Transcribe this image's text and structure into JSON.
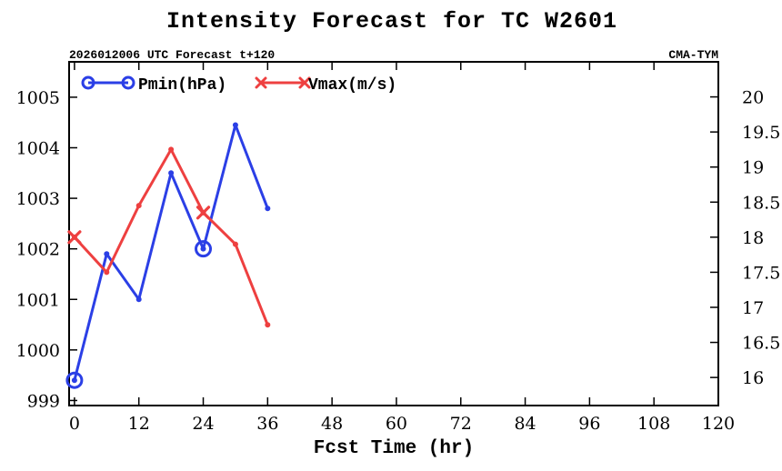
{
  "chart_data": {
    "type": "line",
    "title": "Intensity Forecast for TC W2601",
    "subtitle_left": "2026012006 UTC Forecast t+120",
    "subtitle_right": "CMA-TYM",
    "xlabel": "Fcst Time (hr)",
    "xlim": [
      -1,
      120
    ],
    "xticks": [
      0,
      12,
      24,
      36,
      48,
      60,
      72,
      84,
      96,
      108,
      120
    ],
    "xtick_labels": [
      "0",
      "12",
      "24",
      "36",
      "48",
      "60",
      "72",
      "84",
      "96",
      "108",
      "120"
    ],
    "ylim_left": [
      998.9,
      1005.7
    ],
    "yticks_left": [
      999,
      1000,
      1001,
      1002,
      1003,
      1004,
      1005
    ],
    "ytick_labels_left": [
      "999",
      "1000",
      "1001",
      "1002",
      "1003",
      "1004",
      "1005"
    ],
    "ylim_right": [
      15.6,
      20.5
    ],
    "yticks_right": [
      16,
      16.5,
      17,
      17.5,
      18,
      18.5,
      19,
      19.5,
      20
    ],
    "ytick_labels_right": [
      "16",
      "16.5",
      "17",
      "17.5",
      "18",
      "18.5",
      "19",
      "19.5",
      "20"
    ],
    "legend_position": "top-left",
    "series": [
      {
        "name": "Pmin(hPa)",
        "axis": "left",
        "color": "#2b3fe6",
        "marker": "circle",
        "x": [
          0,
          6,
          12,
          18,
          24,
          30,
          36
        ],
        "values": [
          999.4,
          1001.9,
          1001.0,
          1003.5,
          1002.0,
          1004.45,
          1002.8
        ],
        "big_marker_x": [
          0,
          24
        ]
      },
      {
        "name": "Vmax(m/s)",
        "axis": "right",
        "color": "#ee4040",
        "marker": "x",
        "x": [
          0,
          6,
          12,
          18,
          24,
          30,
          36
        ],
        "values": [
          18.0,
          17.5,
          18.45,
          19.25,
          18.35,
          17.9,
          16.75
        ],
        "big_marker_x": [
          0,
          24
        ]
      }
    ]
  }
}
